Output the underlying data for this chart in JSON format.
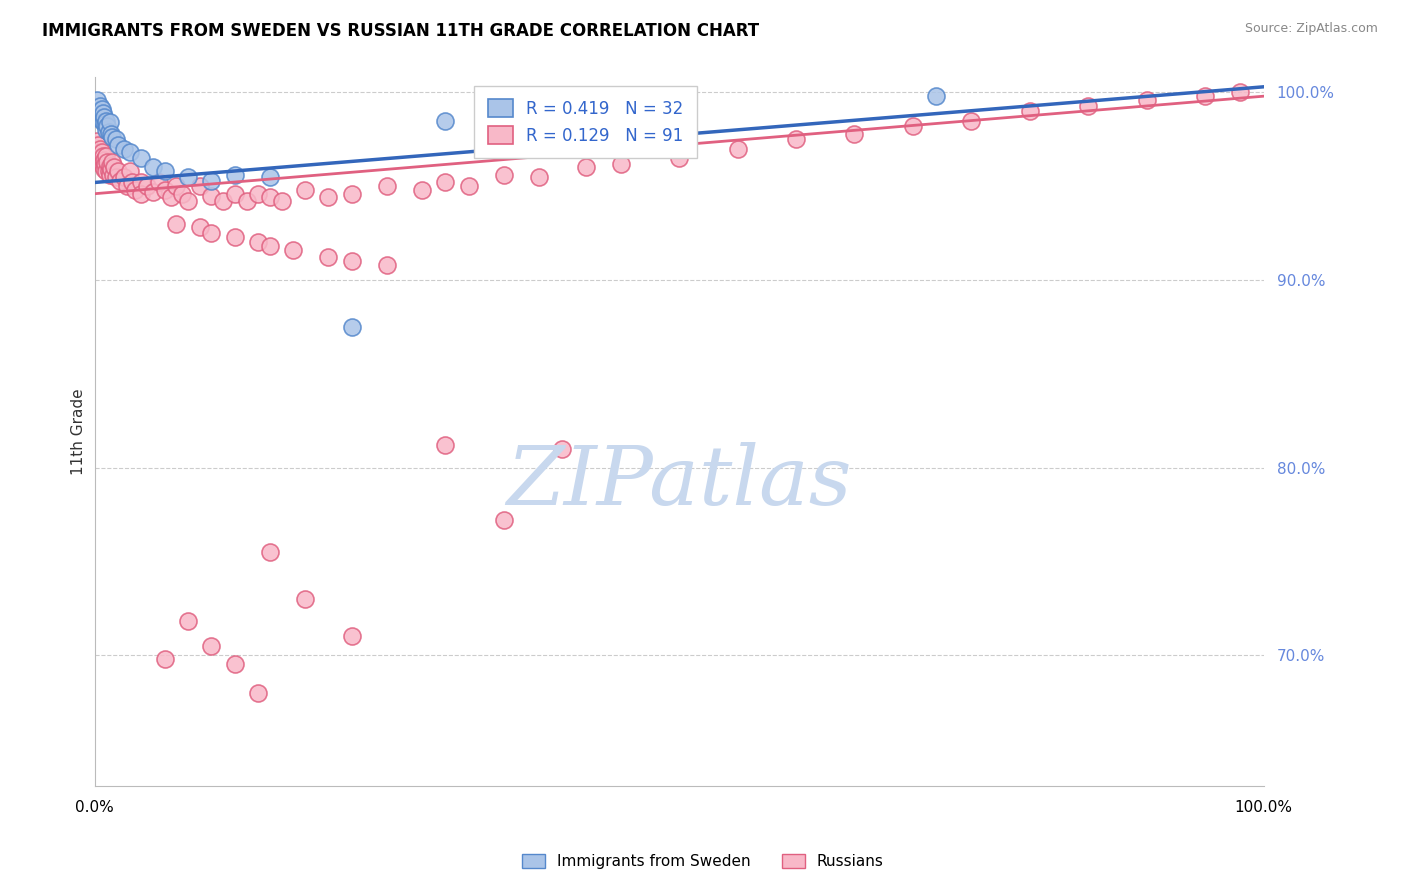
{
  "title": "IMMIGRANTS FROM SWEDEN VS RUSSIAN 11TH GRADE CORRELATION CHART",
  "source_text": "Source: ZipAtlas.com",
  "ylabel": "11th Grade",
  "xmin": 0.0,
  "xmax": 1.0,
  "ymin": 0.63,
  "ymax": 1.008,
  "yticks": [
    0.7,
    0.8,
    0.9,
    1.0
  ],
  "ytick_labels": [
    "70.0%",
    "80.0%",
    "90.0%",
    "100.0%"
  ],
  "blue_R": 0.419,
  "blue_N": 32,
  "pink_R": 0.129,
  "pink_N": 91,
  "legend_label_blue": "Immigrants from Sweden",
  "legend_label_pink": "Russians",
  "blue_face_color": "#aac4e8",
  "pink_face_color": "#f8b8c8",
  "blue_edge_color": "#5588cc",
  "pink_edge_color": "#e06080",
  "blue_line_color": "#3366bb",
  "pink_line_color": "#e06080",
  "blue_line_x0": 0.0,
  "blue_line_y0": 0.952,
  "blue_line_x1": 1.0,
  "blue_line_y1": 1.003,
  "pink_line_x0": 0.0,
  "pink_line_y0": 0.946,
  "pink_line_x1": 1.0,
  "pink_line_y1": 0.998,
  "watermark_text": "ZIPatlas",
  "watermark_color": "#c8d8ee",
  "grid_color": "#cccccc",
  "right_tick_color": "#6688dd",
  "background_color": "#ffffff",
  "blue_scatter_x": [
    0.002,
    0.003,
    0.004,
    0.005,
    0.005,
    0.006,
    0.007,
    0.007,
    0.008,
    0.009,
    0.01,
    0.01,
    0.011,
    0.012,
    0.013,
    0.014,
    0.015,
    0.018,
    0.02,
    0.025,
    0.03,
    0.04,
    0.05,
    0.06,
    0.08,
    0.1,
    0.12,
    0.15,
    0.22,
    0.3,
    0.5,
    0.72
  ],
  "blue_scatter_y": [
    0.996,
    0.99,
    0.988,
    0.993,
    0.986,
    0.991,
    0.989,
    0.984,
    0.987,
    0.983,
    0.985,
    0.98,
    0.982,
    0.979,
    0.984,
    0.978,
    0.976,
    0.975,
    0.972,
    0.97,
    0.968,
    0.965,
    0.96,
    0.958,
    0.955,
    0.953,
    0.956,
    0.955,
    0.875,
    0.985,
    0.994,
    0.998
  ],
  "pink_scatter_x": [
    0.002,
    0.003,
    0.004,
    0.005,
    0.005,
    0.006,
    0.006,
    0.007,
    0.007,
    0.008,
    0.008,
    0.009,
    0.01,
    0.01,
    0.011,
    0.012,
    0.013,
    0.013,
    0.014,
    0.015,
    0.016,
    0.017,
    0.018,
    0.02,
    0.022,
    0.025,
    0.028,
    0.03,
    0.032,
    0.035,
    0.04,
    0.04,
    0.045,
    0.05,
    0.055,
    0.06,
    0.065,
    0.07,
    0.075,
    0.08,
    0.09,
    0.1,
    0.11,
    0.12,
    0.13,
    0.14,
    0.15,
    0.16,
    0.18,
    0.2,
    0.22,
    0.25,
    0.28,
    0.3,
    0.32,
    0.35,
    0.38,
    0.42,
    0.45,
    0.5,
    0.55,
    0.6,
    0.65,
    0.7,
    0.75,
    0.8,
    0.85,
    0.9,
    0.95,
    0.98,
    0.07,
    0.09,
    0.1,
    0.12,
    0.14,
    0.15,
    0.17,
    0.2,
    0.22,
    0.25,
    0.3,
    0.35,
    0.4,
    0.15,
    0.18,
    0.22,
    0.14,
    0.12,
    0.1,
    0.08,
    0.06
  ],
  "pink_scatter_y": [
    0.974,
    0.972,
    0.968,
    0.97,
    0.965,
    0.968,
    0.963,
    0.966,
    0.961,
    0.964,
    0.959,
    0.962,
    0.966,
    0.958,
    0.963,
    0.958,
    0.961,
    0.956,
    0.959,
    0.963,
    0.956,
    0.96,
    0.955,
    0.958,
    0.953,
    0.955,
    0.95,
    0.958,
    0.952,
    0.948,
    0.952,
    0.946,
    0.95,
    0.947,
    0.952,
    0.948,
    0.944,
    0.95,
    0.946,
    0.942,
    0.95,
    0.945,
    0.942,
    0.946,
    0.942,
    0.946,
    0.944,
    0.942,
    0.948,
    0.944,
    0.946,
    0.95,
    0.948,
    0.952,
    0.95,
    0.956,
    0.955,
    0.96,
    0.962,
    0.965,
    0.97,
    0.975,
    0.978,
    0.982,
    0.985,
    0.99,
    0.993,
    0.996,
    0.998,
    1.0,
    0.93,
    0.928,
    0.925,
    0.923,
    0.92,
    0.918,
    0.916,
    0.912,
    0.91,
    0.908,
    0.812,
    0.772,
    0.81,
    0.755,
    0.73,
    0.71,
    0.68,
    0.695,
    0.705,
    0.718,
    0.698
  ]
}
